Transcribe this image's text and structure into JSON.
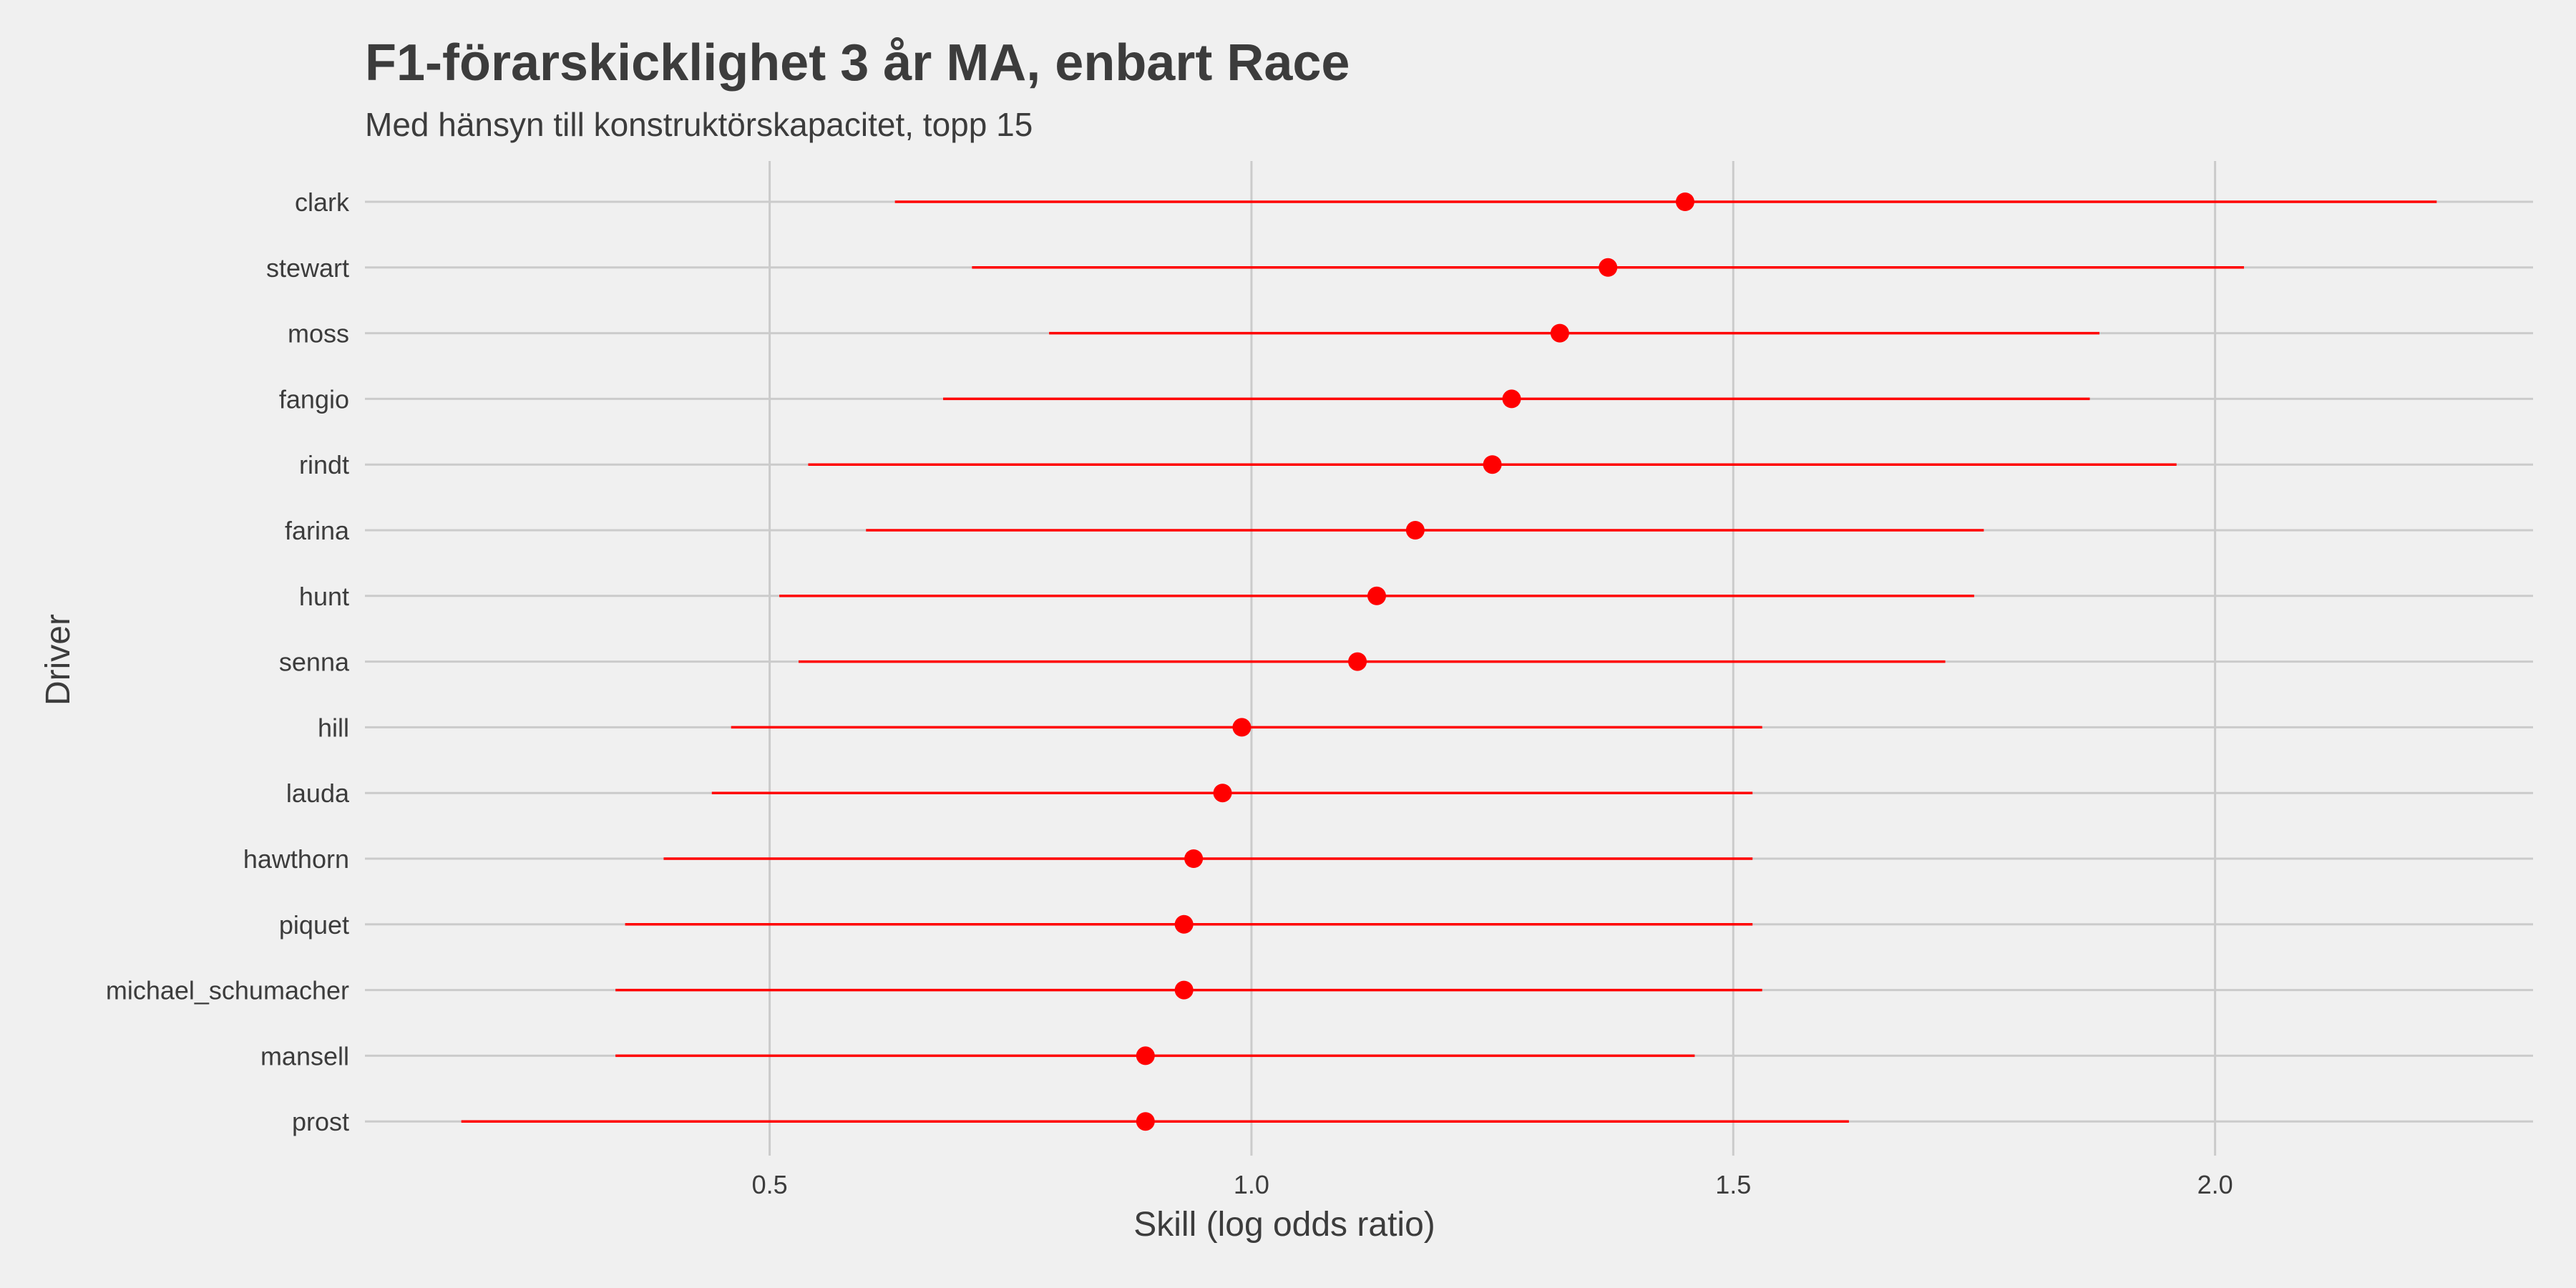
{
  "chart_data": {
    "type": "scatter",
    "title": "F1-förarskicklighet  3 år MA, enbart Race",
    "subtitle": "Med hänsyn till konstruktörskapacitet, topp 15",
    "xlabel": "Skill (log odds ratio)",
    "ylabel": "Driver",
    "xlim": [
      0.08,
      2.33
    ],
    "xticks": [
      0.5,
      1.0,
      1.5,
      2.0
    ],
    "xtick_labels": [
      "0.5",
      "1.0",
      "1.5",
      "2.0"
    ],
    "grid": true,
    "legend": "none",
    "point_color": "#ff0000",
    "background": "#f0f0f0",
    "drivers": [
      {
        "name": "clark",
        "estimate": 1.45,
        "lower": 0.63,
        "upper": 2.23
      },
      {
        "name": "stewart",
        "estimate": 1.37,
        "lower": 0.71,
        "upper": 2.03
      },
      {
        "name": "moss",
        "estimate": 1.32,
        "lower": 0.79,
        "upper": 1.88
      },
      {
        "name": "fangio",
        "estimate": 1.27,
        "lower": 0.68,
        "upper": 1.87
      },
      {
        "name": "rindt",
        "estimate": 1.25,
        "lower": 0.54,
        "upper": 1.96
      },
      {
        "name": "farina",
        "estimate": 1.17,
        "lower": 0.6,
        "upper": 1.76
      },
      {
        "name": "hunt",
        "estimate": 1.13,
        "lower": 0.51,
        "upper": 1.75
      },
      {
        "name": "senna",
        "estimate": 1.11,
        "lower": 0.53,
        "upper": 1.72
      },
      {
        "name": "hill",
        "estimate": 0.99,
        "lower": 0.46,
        "upper": 1.53
      },
      {
        "name": "lauda",
        "estimate": 0.97,
        "lower": 0.44,
        "upper": 1.52
      },
      {
        "name": "hawthorn",
        "estimate": 0.94,
        "lower": 0.39,
        "upper": 1.52
      },
      {
        "name": "piquet",
        "estimate": 0.93,
        "lower": 0.35,
        "upper": 1.52
      },
      {
        "name": "michael_schumacher",
        "estimate": 0.93,
        "lower": 0.34,
        "upper": 1.53
      },
      {
        "name": "mansell",
        "estimate": 0.89,
        "lower": 0.34,
        "upper": 1.46
      },
      {
        "name": "prost",
        "estimate": 0.89,
        "lower": 0.18,
        "upper": 1.62
      }
    ]
  }
}
